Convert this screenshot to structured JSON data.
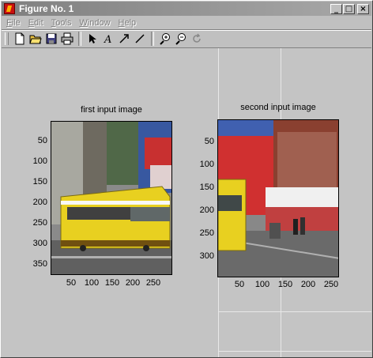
{
  "window": {
    "title": "Figure No. 1"
  },
  "menu": [
    {
      "pre": "",
      "u": "F",
      "post": "ile"
    },
    {
      "pre": "",
      "u": "E",
      "post": "dit"
    },
    {
      "pre": "",
      "u": "T",
      "post": "ools"
    },
    {
      "pre": "",
      "u": "W",
      "post": "indow"
    },
    {
      "pre": "",
      "u": "H",
      "post": "elp"
    }
  ],
  "toolbar": [
    "new-file-icon",
    "open-folder-icon",
    "save-icon",
    "print-icon",
    "select-arrow-icon",
    "insert-text-icon",
    "insert-arrow-icon",
    "insert-line-icon",
    "zoom-in-icon",
    "zoom-out-icon",
    "rotate-icon"
  ],
  "axes": [
    {
      "title": "first input image",
      "xticks": [
        50,
        100,
        150,
        200,
        250
      ],
      "yticks": [
        50,
        100,
        150,
        200,
        250,
        300,
        350
      ]
    },
    {
      "title": "second input image",
      "xticks": [
        50,
        100,
        150,
        200,
        250
      ],
      "yticks": [
        50,
        100,
        150,
        200,
        250,
        300
      ]
    }
  ]
}
